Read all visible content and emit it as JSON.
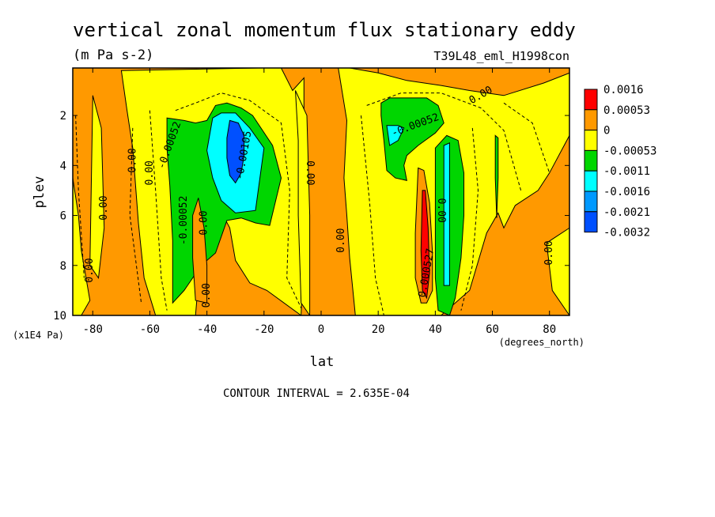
{
  "chart_data": {
    "type": "heatmap",
    "title": "vertical zonal momentum flux stationary eddy",
    "units": "(m Pa s-2)",
    "run_label": "T39L48_eml_H1998con",
    "xlabel": "lat",
    "x_units": "(degrees_north)",
    "ylabel": "plev",
    "y_units": "(x1E4 Pa)",
    "footer": "CONTOUR INTERVAL = 2.635E-04",
    "xlim": [
      -87,
      87
    ],
    "ylim": [
      10,
      0.1
    ],
    "xticks": [
      "-80",
      "-60",
      "-40",
      "-20",
      "0",
      "20",
      "40",
      "60",
      "80"
    ],
    "yticks": [
      "2",
      "4",
      "6",
      "8",
      "10"
    ],
    "colorbar": {
      "labels": [
        "0.0016",
        "0.00053",
        "0",
        "-0.00053",
        "-0.0011",
        "-0.0016",
        "-0.0021",
        "-0.0032"
      ],
      "colors": [
        "#ff0000",
        "#ff9900",
        "#ffff00",
        "#00d600",
        "#00ffff",
        "#0099ff",
        "#0050ff"
      ]
    },
    "background_color": "#ff9900",
    "regions": [
      {
        "fill": "yellow",
        "points": [
          [
            -87,
            4.5
          ],
          [
            -85,
            6
          ],
          [
            -84,
            7.4
          ],
          [
            -81,
            9.4
          ],
          [
            -84,
            10
          ],
          [
            -87,
            10
          ]
        ]
      },
      {
        "fill": "yellow",
        "points": [
          [
            -80,
            1.2
          ],
          [
            -77,
            2.5
          ],
          [
            -76,
            6.5
          ],
          [
            -78,
            8.5
          ],
          [
            -81,
            8
          ]
        ]
      },
      {
        "fill": "yellow",
        "points": [
          [
            -70,
            0.2
          ],
          [
            -68,
            1.8
          ],
          [
            -66,
            3.3
          ],
          [
            -64,
            6.3
          ],
          [
            -62,
            8.5
          ],
          [
            -58,
            10
          ],
          [
            -44,
            10
          ],
          [
            -42,
            7.3
          ],
          [
            -39,
            5
          ],
          [
            -32,
            6.5
          ],
          [
            -30,
            7.8
          ],
          [
            -25,
            8.7
          ],
          [
            -19,
            9
          ],
          [
            -7,
            10
          ],
          [
            -6,
            7
          ],
          [
            -6,
            3.3
          ],
          [
            -6,
            0.5
          ],
          [
            -10,
            1
          ],
          [
            -14,
            0.1
          ],
          [
            -22,
            0.1
          ]
        ]
      },
      {
        "fill": "yellow",
        "points": [
          [
            -9,
            1
          ],
          [
            -8,
            3
          ],
          [
            -8,
            6
          ],
          [
            -7,
            9.5
          ],
          [
            -4,
            10
          ],
          [
            -4,
            6
          ],
          [
            -5,
            2
          ]
        ]
      },
      {
        "fill": "yellow",
        "points": [
          [
            6,
            0.1
          ],
          [
            9,
            2.2
          ],
          [
            8,
            4.5
          ],
          [
            9,
            6
          ],
          [
            10,
            7.7
          ],
          [
            12,
            10
          ],
          [
            42,
            10
          ],
          [
            52,
            9
          ],
          [
            58,
            6.7
          ],
          [
            62,
            5.9
          ],
          [
            64,
            6.5
          ],
          [
            68,
            5.6
          ],
          [
            76,
            5
          ],
          [
            80,
            4.3
          ],
          [
            87,
            2.8
          ],
          [
            87,
            0.3
          ],
          [
            78,
            0.7
          ],
          [
            64,
            1.2
          ],
          [
            52,
            1
          ],
          [
            42,
            0.8
          ],
          [
            30,
            0.6
          ],
          [
            20,
            0.3
          ],
          [
            10,
            0.1
          ]
        ]
      },
      {
        "fill": "yellow",
        "points": [
          [
            79,
            7.1
          ],
          [
            81,
            9
          ],
          [
            87,
            10
          ],
          [
            87,
            6.5
          ]
        ]
      },
      {
        "fill": "green",
        "points": [
          [
            -54,
            2.1
          ],
          [
            -48,
            2.2
          ],
          [
            -44,
            2.3
          ],
          [
            -40,
            2.2
          ],
          [
            -37,
            1.6
          ],
          [
            -33,
            1.5
          ],
          [
            -28,
            1.7
          ],
          [
            -24,
            2
          ],
          [
            -17,
            3.2
          ],
          [
            -14,
            4.5
          ],
          [
            -18,
            6.4
          ],
          [
            -23,
            6.3
          ],
          [
            -28,
            6.1
          ],
          [
            -33,
            6.2
          ],
          [
            -37,
            7.5
          ],
          [
            -42,
            8
          ],
          [
            -45,
            8.5
          ],
          [
            -48,
            9
          ],
          [
            -52,
            9.5
          ],
          [
            -52,
            7
          ],
          [
            -53,
            4.8
          ],
          [
            -54,
            3.3
          ]
        ]
      },
      {
        "fill": "cyan",
        "points": [
          [
            -38,
            2.1
          ],
          [
            -35,
            1.9
          ],
          [
            -30,
            1.9
          ],
          [
            -25,
            2.5
          ],
          [
            -20,
            3.3
          ],
          [
            -23,
            5.8
          ],
          [
            -30,
            5.9
          ],
          [
            -35,
            5.4
          ],
          [
            -38,
            4.5
          ],
          [
            -40,
            3.4
          ]
        ]
      },
      {
        "fill": "blue",
        "points": [
          [
            -32,
            2.2
          ],
          [
            -29,
            2.3
          ],
          [
            -27,
            2.8
          ],
          [
            -27,
            3.6
          ],
          [
            -28,
            4.3
          ],
          [
            -30,
            4.7
          ],
          [
            -32,
            4.4
          ],
          [
            -33,
            3.7
          ],
          [
            -33,
            2.9
          ]
        ]
      },
      {
        "fill": "lightorange",
        "points": [
          [
            -43,
            5.3
          ],
          [
            -41,
            6.5
          ],
          [
            -40,
            8
          ],
          [
            -40,
            9.5
          ],
          [
            -44,
            9.4
          ],
          [
            -45,
            7.7
          ],
          [
            -45,
            6
          ]
        ]
      },
      {
        "fill": "green",
        "points": [
          [
            21,
            1.5
          ],
          [
            24,
            1.3
          ],
          [
            31,
            1.3
          ],
          [
            37,
            1.3
          ],
          [
            41,
            1.6
          ],
          [
            43,
            2.3
          ],
          [
            40,
            2.7
          ],
          [
            34,
            3.2
          ],
          [
            30,
            3.6
          ],
          [
            29,
            4
          ],
          [
            30,
            4.6
          ],
          [
            26,
            4.5
          ],
          [
            23,
            4.2
          ],
          [
            22,
            3
          ],
          [
            21,
            2
          ]
        ]
      },
      {
        "fill": "cyan",
        "points": [
          [
            23,
            2.4
          ],
          [
            27,
            2.4
          ],
          [
            29,
            2.5
          ],
          [
            27,
            3
          ],
          [
            24,
            3.2
          ]
        ]
      },
      {
        "fill": "green",
        "points": [
          [
            40,
            3.3
          ],
          [
            44,
            2.8
          ],
          [
            48,
            3
          ],
          [
            50,
            4.3
          ],
          [
            50,
            6
          ],
          [
            49,
            7.7
          ],
          [
            47,
            9.3
          ],
          [
            45,
            10
          ],
          [
            41,
            9.8
          ],
          [
            40,
            8.5
          ],
          [
            40,
            6
          ]
        ]
      },
      {
        "fill": "cyan",
        "points": [
          [
            43,
            3.2
          ],
          [
            45,
            3.1
          ],
          [
            45,
            6
          ],
          [
            45,
            8.8
          ],
          [
            43,
            8.8
          ],
          [
            43,
            6
          ]
        ]
      },
      {
        "fill": "lightorange",
        "points": [
          [
            34,
            4.1
          ],
          [
            36,
            4.2
          ],
          [
            38,
            5.5
          ],
          [
            39,
            7.5
          ],
          [
            39,
            9
          ],
          [
            37,
            9.5
          ],
          [
            35,
            9.5
          ],
          [
            33,
            8.5
          ],
          [
            33,
            6.7
          ]
        ]
      },
      {
        "fill": "red",
        "points": [
          [
            35.5,
            5
          ],
          [
            36.5,
            5
          ],
          [
            37.5,
            6.5
          ],
          [
            38,
            8.3
          ],
          [
            37,
            9.3
          ],
          [
            35.5,
            9
          ],
          [
            35,
            7.4
          ]
        ]
      },
      {
        "fill": "green",
        "points": [
          [
            61,
            2.8
          ],
          [
            62,
            2.9
          ],
          [
            62,
            4.5
          ],
          [
            61.5,
            6.1
          ],
          [
            61,
            4.5
          ]
        ]
      }
    ],
    "contour_labels": [
      "0.00",
      "0.00",
      "0.00",
      "0.00",
      "0.00",
      "-0.00052",
      "-0.00052",
      "0.00",
      "-0.00105",
      "0.00",
      "0.00",
      "0.00",
      "-0.00052",
      "0.000527",
      "0.00",
      "0.00"
    ]
  }
}
